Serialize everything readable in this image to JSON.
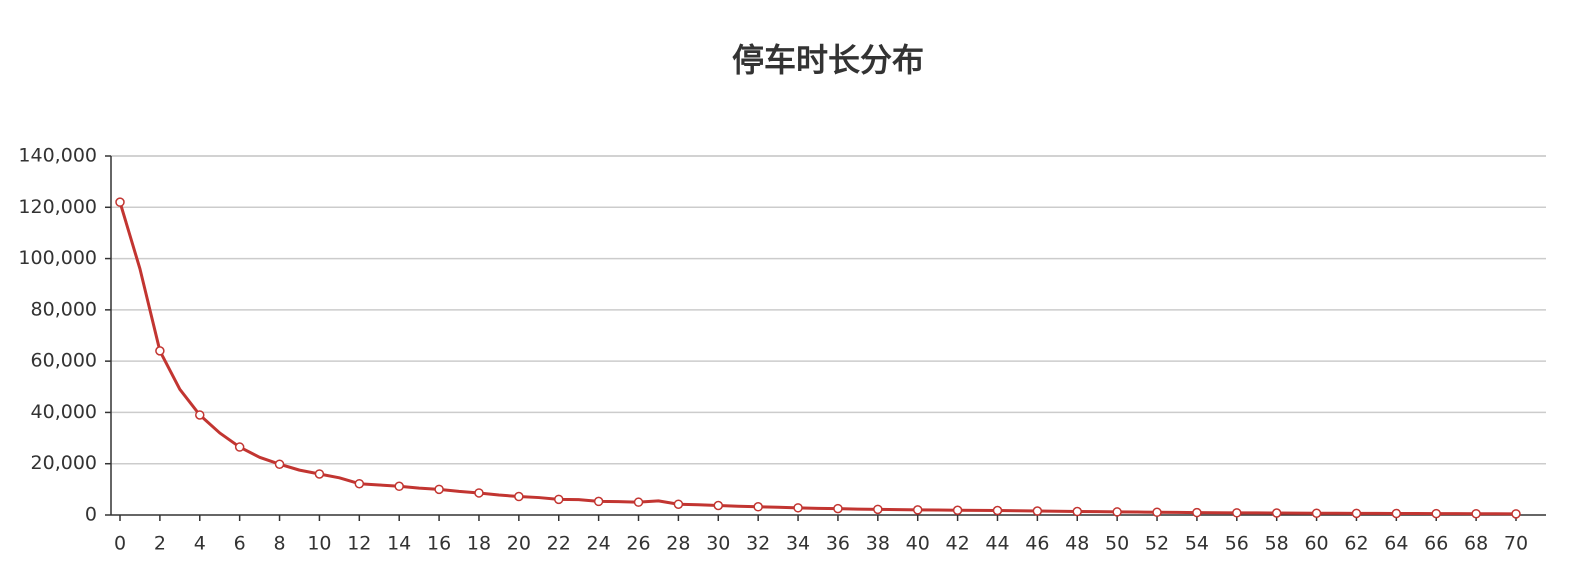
{
  "chart_data": {
    "type": "line",
    "title": "停车时长分布",
    "categories": [
      "0",
      null,
      "2",
      null,
      "4",
      null,
      "6",
      null,
      "8",
      null,
      "10",
      null,
      "12",
      null,
      "14",
      null,
      "16",
      null,
      "18",
      null,
      "20",
      null,
      "22",
      null,
      "24",
      null,
      "26",
      null,
      "28",
      null,
      "30",
      null,
      "32",
      null,
      "34",
      null,
      "36",
      null,
      "38",
      null,
      "40",
      null,
      "42",
      null,
      "44",
      null,
      "46",
      null,
      "48",
      null,
      "50",
      null,
      "52",
      null,
      "54",
      null,
      "56",
      null,
      "58",
      null,
      "60",
      null,
      "62",
      null,
      "64",
      null,
      "66",
      null,
      "68",
      null,
      "70"
    ],
    "series": [
      {
        "color": "#c23531",
        "values": [
          122000,
          96000,
          64000,
          49000,
          39000,
          32000,
          26500,
          22500,
          19800,
          17500,
          16000,
          14500,
          12200,
          11700,
          11200,
          10500,
          10000,
          9200,
          8600,
          7800,
          7200,
          6800,
          6100,
          6000,
          5300,
          5200,
          5000,
          5500,
          4200,
          4000,
          3700,
          3400,
          3200,
          3000,
          2800,
          2600,
          2500,
          2300,
          2200,
          2100,
          2000,
          1950,
          1850,
          1800,
          1750,
          1650,
          1550,
          1450,
          1350,
          1300,
          1200,
          1150,
          1050,
          1000,
          950,
          900,
          850,
          820,
          780,
          750,
          700,
          680,
          650,
          620,
          600,
          580,
          550,
          530,
          500,
          480,
          450
        ]
      }
    ],
    "ylim": [
      0,
      140000
    ],
    "yticks": [
      0,
      {
        "value": 20000,
        "label": "20,000"
      },
      {
        "value": 40000,
        "label": "40,000"
      },
      {
        "value": 60000,
        "label": "60,000"
      },
      {
        "value": 80000,
        "label": "80,000"
      },
      {
        "value": 100000,
        "label": "100,000"
      },
      {
        "value": 120000,
        "label": "120,000"
      },
      {
        "value": 140000,
        "label": "140,000"
      }
    ],
    "grid": true
  }
}
